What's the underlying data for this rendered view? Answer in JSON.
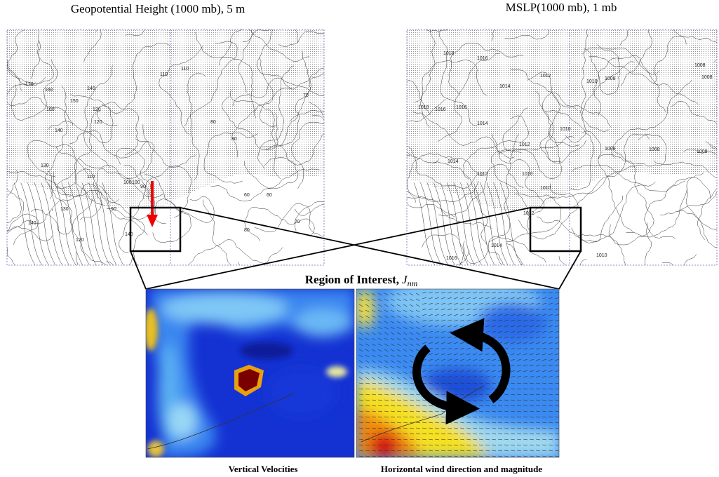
{
  "left_map": {
    "title": "Geopotential Height (1000 mb), 5 m",
    "contour_labels": [
      "170",
      "160",
      "160",
      "150",
      "140",
      "140",
      "120",
      "110",
      "110",
      "100",
      "90",
      "80",
      "80",
      "70",
      "130",
      "140",
      "120",
      "110",
      "100",
      "90",
      "140",
      "130",
      "120",
      "80",
      "60",
      "60",
      "70"
    ]
  },
  "right_map": {
    "title": "MSLP(1000 mb), 1 mb",
    "contour_labels": [
      "1018",
      "1016",
      "1016",
      "1014",
      "1014",
      "1012",
      "1010",
      "1008",
      "1008",
      "1008",
      "1018",
      "1016",
      "1014",
      "1012",
      "1010",
      "1010",
      "1008",
      "1012",
      "1014",
      "1016",
      "1010",
      "1008",
      "1008",
      "1012",
      "1010"
    ]
  },
  "region": {
    "title": "Region of Interest,",
    "symbol": "J",
    "subscript": "nm"
  },
  "panels": {
    "left_caption": "Vertical Velocities",
    "right_caption": "Horizontal wind direction and magnitude"
  }
}
